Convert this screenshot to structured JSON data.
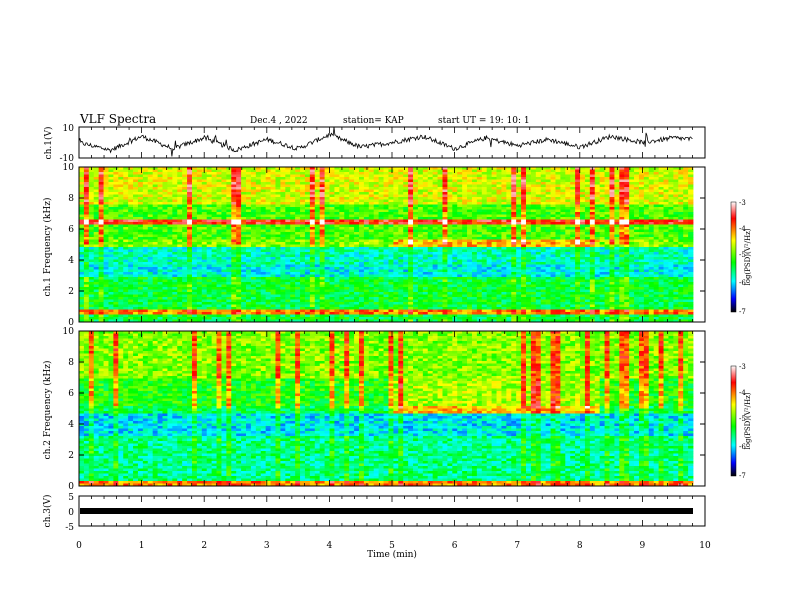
{
  "header": {
    "title": "VLF Spectra",
    "date": "Dec.4 , 2022",
    "station": "station= KAP",
    "start": "start  UT =   19: 10: 1"
  },
  "chart_data": [
    {
      "type": "line",
      "panel": "ch1-waveform",
      "ylabel": "ch.1(V)",
      "ylim": [
        -10,
        10
      ],
      "yticks": [
        10,
        -10
      ],
      "x": [
        0,
        0.5,
        1,
        1.5,
        2,
        2.5,
        3,
        3.5,
        4,
        4.5,
        5,
        5.5,
        6,
        6.5,
        7,
        7.5,
        8,
        8.5,
        9,
        9.5,
        9.8
      ],
      "y": [
        0,
        -5,
        4,
        -4,
        3,
        -5,
        2,
        -4,
        5,
        -3,
        0,
        4,
        -4,
        3,
        -2,
        2,
        -3,
        4,
        0,
        3,
        2
      ]
    },
    {
      "type": "heatmap",
      "panel": "ch1-spectrogram",
      "ylabel": "ch.1 Frequency (kHz)",
      "ylim": [
        0,
        10
      ],
      "yticks": [
        0,
        2,
        4,
        6,
        8,
        10
      ],
      "xlim": [
        0,
        10
      ],
      "colorbar": {
        "label": "log(PSD)(V²/Hz)",
        "range": [
          -7,
          -3
        ],
        "ticks": [
          "-3",
          "-4",
          "-5",
          "-6",
          "-7"
        ]
      }
    },
    {
      "type": "heatmap",
      "panel": "ch2-spectrogram",
      "ylabel": "ch.2 Frequency (kHz)",
      "ylim": [
        0,
        10
      ],
      "yticks": [
        0,
        2,
        4,
        6,
        8,
        10
      ],
      "xlim": [
        0,
        10
      ],
      "colorbar": {
        "label": "log(PSD)(V²/Hz)",
        "range": [
          -7,
          -3
        ],
        "ticks": [
          "-3",
          "-4",
          "-5",
          "-6",
          "-7"
        ]
      }
    },
    {
      "type": "line",
      "panel": "ch3-waveform",
      "ylabel": "ch.3(V)",
      "ylim": [
        -5,
        5
      ],
      "yticks": [
        5,
        0,
        -5
      ],
      "x": [
        0,
        9.8
      ],
      "y": [
        0,
        0
      ]
    }
  ],
  "xaxis": {
    "label": "Time  (min)",
    "ticks": [
      "0",
      "1",
      "2",
      "3",
      "4",
      "5",
      "6",
      "7",
      "8",
      "9",
      "10"
    ]
  }
}
